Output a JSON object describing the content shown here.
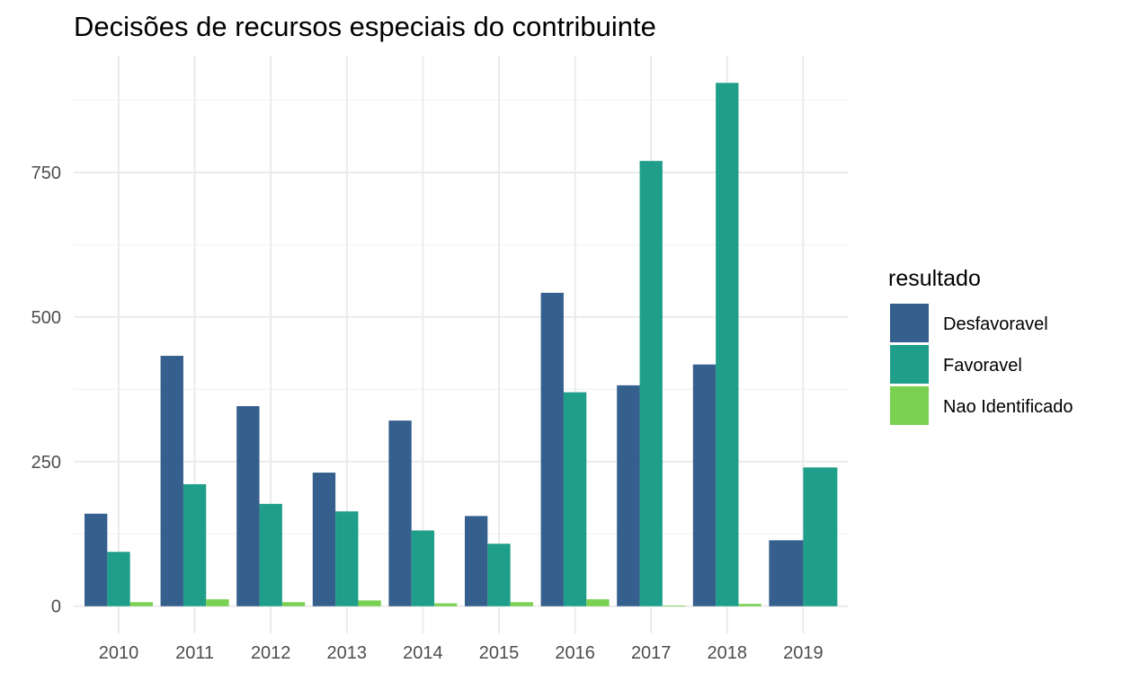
{
  "chart_data": {
    "type": "bar",
    "title": "Decisões de recursos especiais do contribuinte",
    "xlabel": "",
    "ylabel": "",
    "categories": [
      "2010",
      "2011",
      "2012",
      "2013",
      "2014",
      "2015",
      "2016",
      "2017",
      "2018",
      "2019"
    ],
    "series": [
      {
        "name": "Desfavoravel",
        "color": "#355f8d",
        "values": [
          160,
          433,
          346,
          231,
          321,
          156,
          542,
          382,
          418,
          114
        ]
      },
      {
        "name": "Favoravel",
        "color": "#1f9e89",
        "values": [
          94,
          211,
          177,
          164,
          131,
          108,
          370,
          770,
          905,
          240
        ]
      },
      {
        "name": "Nao Identificado",
        "color": "#7ad151",
        "values": [
          7,
          12,
          7,
          10,
          5,
          7,
          12,
          1,
          4,
          null
        ]
      }
    ],
    "y_ticks": [
      0,
      250,
      500,
      750
    ],
    "ylim": [
      -47,
      952
    ],
    "grid": true,
    "legend": {
      "title": "resultado",
      "position": "right"
    }
  }
}
